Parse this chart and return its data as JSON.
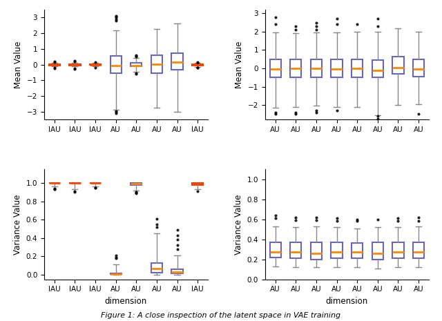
{
  "figure_bg": "#ffffff",
  "subplot_bg": "#ffffff",
  "top_left": {
    "ylabel": "Mean Value",
    "xlabel": "",
    "ylim": [
      -3.5,
      3.5
    ],
    "yticks": [
      -3,
      -2,
      -1,
      0,
      1,
      2,
      3
    ],
    "labels": [
      "IAU",
      "IAU",
      "IAU",
      "AU",
      "AU",
      "AU",
      "AU",
      "IAU"
    ],
    "boxes": [
      {
        "med": 0.0,
        "q1": -0.04,
        "q3": 0.04,
        "whislo": -0.12,
        "whishi": 0.12,
        "fliers": [
          -0.22,
          -0.18,
          0.2,
          0.17
        ],
        "type": "IAU"
      },
      {
        "med": 0.0,
        "q1": -0.04,
        "q3": 0.04,
        "whislo": -0.12,
        "whishi": 0.12,
        "fliers": [
          -0.28,
          -0.22,
          0.22,
          0.25
        ],
        "type": "IAU"
      },
      {
        "med": 0.0,
        "q1": -0.03,
        "q3": 0.03,
        "whislo": -0.1,
        "whishi": 0.1,
        "fliers": [
          -0.18,
          0.14
        ],
        "type": "IAU"
      },
      {
        "med": -0.05,
        "q1": -0.55,
        "q3": 0.55,
        "whislo": -2.85,
        "whishi": 2.2,
        "fliers": [
          -3.1,
          -3.0,
          -2.95,
          2.8,
          2.9,
          3.0,
          3.05,
          3.1
        ],
        "type": "AU"
      },
      {
        "med": -0.05,
        "q1": -0.12,
        "q3": 0.12,
        "whislo": -0.45,
        "whishi": 0.42,
        "fliers": [
          -0.58,
          -0.52,
          0.5,
          0.54,
          0.59
        ],
        "type": "AU"
      },
      {
        "med": 0.05,
        "q1": -0.55,
        "q3": 0.6,
        "whislo": -2.75,
        "whishi": 2.25,
        "fliers": [],
        "type": "AU"
      },
      {
        "med": 0.15,
        "q1": -0.32,
        "q3": 0.72,
        "whislo": -3.0,
        "whishi": 2.6,
        "fliers": [],
        "type": "AU"
      },
      {
        "med": -0.02,
        "q1": -0.05,
        "q3": 0.04,
        "whislo": -0.15,
        "whishi": 0.1,
        "fliers": [
          -0.2,
          -0.17,
          0.16,
          0.12
        ],
        "type": "IAU"
      }
    ]
  },
  "top_right": {
    "ylabel": "Mean Value",
    "xlabel": "",
    "ylim": [
      -2.8,
      3.2
    ],
    "yticks": [
      -2,
      -1,
      0,
      1,
      2,
      3
    ],
    "labels": [
      "AU",
      "AU",
      "AU",
      "AU",
      "AU",
      "AU",
      "AU",
      "AU"
    ],
    "boxes": [
      {
        "med": -0.05,
        "q1": -0.5,
        "q3": 0.5,
        "whislo": -2.15,
        "whishi": 1.95,
        "fliers": [
          -2.4,
          -2.5,
          2.4,
          2.8
        ],
        "type": "AU"
      },
      {
        "med": 0.0,
        "q1": -0.5,
        "q3": 0.5,
        "whislo": -2.1,
        "whishi": 1.9,
        "fliers": [
          -2.4,
          -2.5,
          2.1,
          2.3
        ],
        "type": "AU"
      },
      {
        "med": 0.0,
        "q1": -0.5,
        "q3": 0.5,
        "whislo": -2.05,
        "whishi": 1.95,
        "fliers": [
          -2.3,
          -2.4,
          2.1,
          2.3,
          2.5
        ],
        "type": "AU"
      },
      {
        "med": -0.05,
        "q1": -0.5,
        "q3": 0.5,
        "whislo": -2.1,
        "whishi": 1.95,
        "fliers": [
          -2.3,
          2.4,
          2.7
        ],
        "type": "AU"
      },
      {
        "med": 0.0,
        "q1": -0.5,
        "q3": 0.5,
        "whislo": -2.1,
        "whishi": 2.0,
        "fliers": [
          2.4
        ],
        "type": "AU"
      },
      {
        "med": -0.1,
        "q1": -0.5,
        "q3": 0.45,
        "whislo": -2.55,
        "whishi": 2.0,
        "fliers": [
          -2.75,
          -2.6,
          2.3,
          2.7
        ],
        "type": "AU"
      },
      {
        "med": 0.05,
        "q1": -0.3,
        "q3": 0.65,
        "whislo": -2.0,
        "whishi": 2.2,
        "fliers": [],
        "type": "AU"
      },
      {
        "med": -0.05,
        "q1": -0.45,
        "q3": 0.5,
        "whislo": -1.95,
        "whishi": 2.0,
        "fliers": [
          -2.5
        ],
        "type": "AU"
      }
    ]
  },
  "bot_left": {
    "ylabel": "Variance Value",
    "xlabel": "dimension",
    "ylim": [
      -0.05,
      1.15
    ],
    "yticks": [
      0.0,
      0.2,
      0.4,
      0.6,
      0.8,
      1.0
    ],
    "labels": [
      "IAU",
      "IAU",
      "IAU",
      "AU",
      "AU",
      "AU",
      "AU",
      "IAU"
    ],
    "boxes": [
      {
        "med": 1.0,
        "q1": 0.997,
        "q3": 1.001,
        "whislo": 0.965,
        "whishi": 1.003,
        "fliers": [
          0.93,
          0.935,
          0.94
        ],
        "type": "IAU"
      },
      {
        "med": 1.0,
        "q1": 0.997,
        "q3": 1.001,
        "whislo": 0.935,
        "whishi": 1.003,
        "fliers": [
          0.91,
          0.905
        ],
        "type": "IAU"
      },
      {
        "med": 1.0,
        "q1": 0.999,
        "q3": 1.001,
        "whislo": 0.965,
        "whishi": 1.003,
        "fliers": [
          0.945,
          0.95
        ],
        "type": "IAU"
      },
      {
        "med": 0.01,
        "q1": 0.004,
        "q3": 0.018,
        "whislo": 0.001,
        "whishi": 0.11,
        "fliers": [
          0.19,
          0.21,
          0.18
        ],
        "type": "AU"
      },
      {
        "med": 0.99,
        "q1": 0.978,
        "q3": 1.0,
        "whislo": 0.92,
        "whishi": 1.001,
        "fliers": [
          0.895,
          0.9,
          0.885
        ],
        "type": "AU"
      },
      {
        "med": 0.07,
        "q1": 0.02,
        "q3": 0.13,
        "whislo": 0.002,
        "whishi": 0.45,
        "fliers": [
          0.52,
          0.55,
          0.61
        ],
        "type": "AU"
      },
      {
        "med": 0.033,
        "q1": 0.012,
        "q3": 0.062,
        "whislo": 0.001,
        "whishi": 0.21,
        "fliers": [
          0.28,
          0.32,
          0.38,
          0.43,
          0.49
        ],
        "type": "AU"
      },
      {
        "med": 0.99,
        "q1": 0.978,
        "q3": 1.0,
        "whislo": 0.935,
        "whishi": 1.001,
        "fliers": [
          0.91
        ],
        "type": "IAU"
      }
    ]
  },
  "bot_right": {
    "ylabel": "Variance Value",
    "xlabel": "dimension",
    "ylim": [
      0.0,
      1.1
    ],
    "yticks": [
      0.0,
      0.2,
      0.4,
      0.6,
      0.8,
      1.0
    ],
    "labels": [
      "AU",
      "AU",
      "AU",
      "AU",
      "AU",
      "AU",
      "AU",
      "AU"
    ],
    "boxes": [
      {
        "med": 0.27,
        "q1": 0.22,
        "q3": 0.37,
        "whislo": 0.13,
        "whishi": 0.53,
        "fliers": [
          0.61,
          0.64
        ],
        "type": "AU"
      },
      {
        "med": 0.27,
        "q1": 0.21,
        "q3": 0.37,
        "whislo": 0.12,
        "whishi": 0.52,
        "fliers": [
          0.59,
          0.62
        ],
        "type": "AU"
      },
      {
        "med": 0.26,
        "q1": 0.2,
        "q3": 0.37,
        "whislo": 0.12,
        "whishi": 0.53,
        "fliers": [
          0.59,
          0.62
        ],
        "type": "AU"
      },
      {
        "med": 0.27,
        "q1": 0.21,
        "q3": 0.37,
        "whislo": 0.12,
        "whishi": 0.52,
        "fliers": [
          0.58,
          0.61
        ],
        "type": "AU"
      },
      {
        "med": 0.27,
        "q1": 0.21,
        "q3": 0.36,
        "whislo": 0.12,
        "whishi": 0.51,
        "fliers": [
          0.58,
          0.6
        ],
        "type": "AU"
      },
      {
        "med": 0.26,
        "q1": 0.2,
        "q3": 0.37,
        "whislo": 0.11,
        "whishi": 0.52,
        "fliers": [
          0.6
        ],
        "type": "AU"
      },
      {
        "med": 0.27,
        "q1": 0.21,
        "q3": 0.37,
        "whislo": 0.12,
        "whishi": 0.52,
        "fliers": [
          0.58,
          0.61
        ],
        "type": "AU"
      },
      {
        "med": 0.27,
        "q1": 0.21,
        "q3": 0.37,
        "whislo": 0.12,
        "whishi": 0.53,
        "fliers": [
          0.58,
          0.62
        ],
        "type": "AU"
      }
    ]
  },
  "box_color_AU": "#6666bb",
  "box_color_IAU": "#dd4400",
  "median_color_AU": "#ff8800",
  "median_color_IAU": "#ff4400",
  "whisker_color": "#888888",
  "flier_color": "black",
  "flier_size": 2.0,
  "caption": "Figure 1: A close inspection of the latent space in VAE training"
}
